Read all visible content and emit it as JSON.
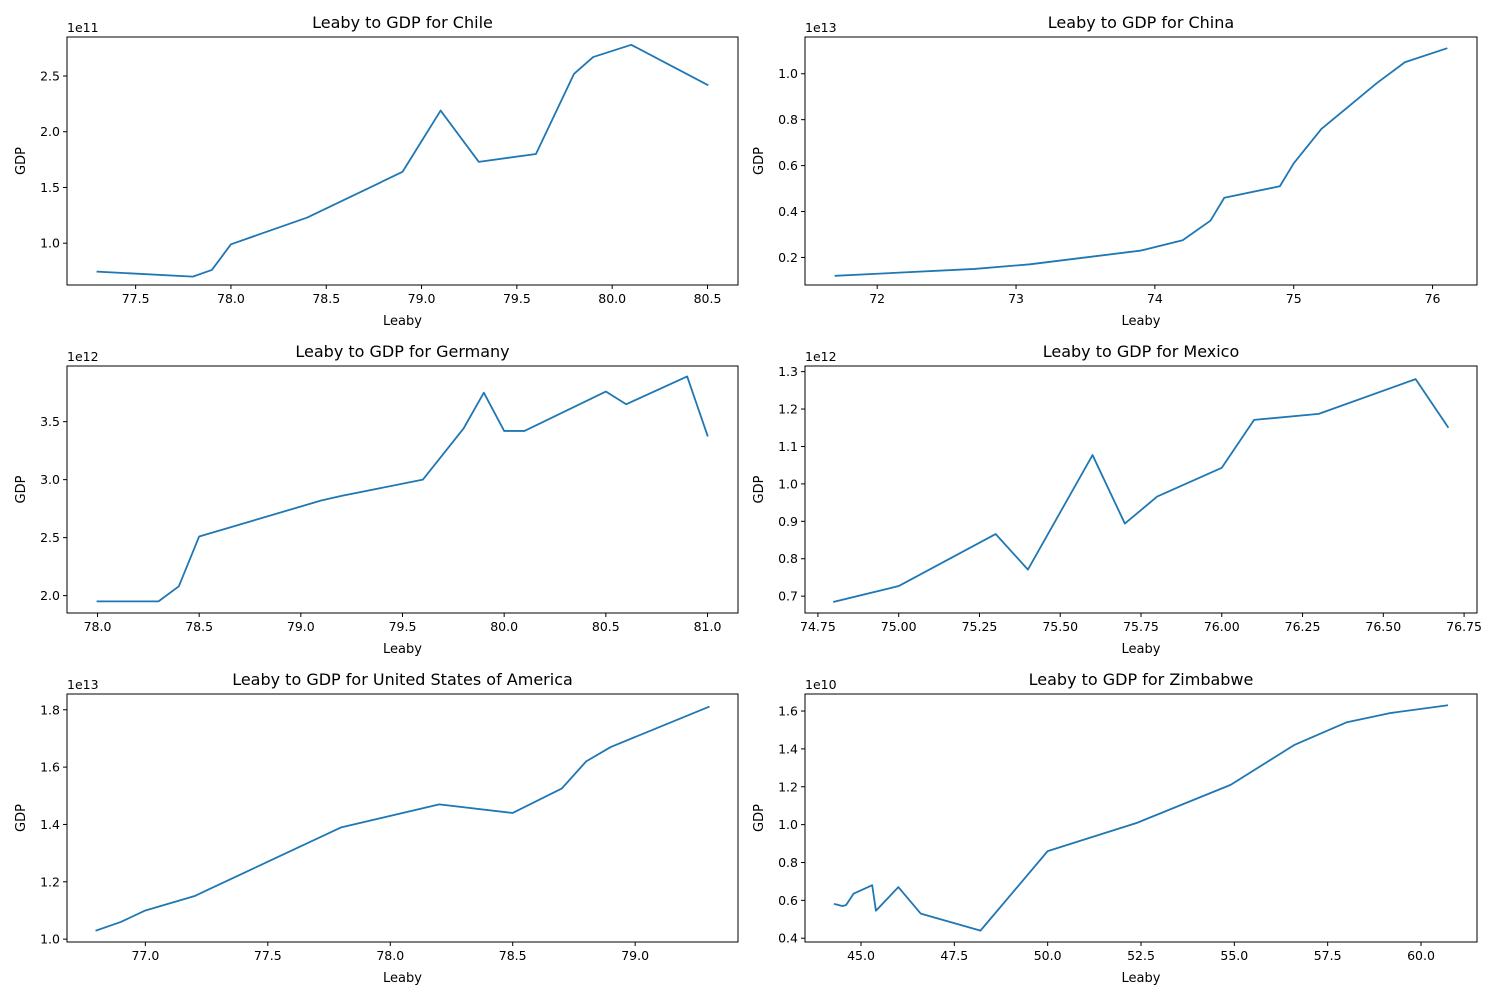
{
  "figure": {
    "line_color": "#1f77b4"
  },
  "chart_data": [
    {
      "type": "line",
      "title": "Leaby to GDP for Chile",
      "xlabel": "Leaby",
      "ylabel": "GDP",
      "exponent_label": "1e11",
      "xlim": [
        77.14,
        80.66
      ],
      "ylim": [
        0.625,
        2.85
      ],
      "xticks": [
        77.5,
        78.0,
        78.5,
        79.0,
        79.5,
        80.0,
        80.5
      ],
      "xtick_labels": [
        "77.5",
        "78.0",
        "78.5",
        "79.0",
        "79.5",
        "80.0",
        "80.5"
      ],
      "yticks": [
        1.0,
        1.5,
        2.0,
        2.5
      ],
      "ytick_labels": [
        "1.0",
        "1.5",
        "2.0",
        "2.5"
      ],
      "x": [
        77.3,
        77.8,
        77.9,
        78.0,
        78.4,
        78.9,
        79.1,
        79.3,
        79.6,
        79.8,
        79.9,
        80.1,
        80.5
      ],
      "y": [
        0.745,
        0.7,
        0.76,
        0.99,
        1.23,
        1.64,
        2.19,
        1.73,
        1.8,
        2.52,
        2.67,
        2.78,
        2.42
      ]
    },
    {
      "type": "line",
      "title": "Leaby to GDP for China",
      "xlabel": "Leaby",
      "ylabel": "GDP",
      "exponent_label": "1e13",
      "xlim": [
        71.48,
        76.32
      ],
      "ylim": [
        0.08,
        1.16
      ],
      "xticks": [
        72,
        73,
        74,
        75,
        76
      ],
      "xtick_labels": [
        "72",
        "73",
        "74",
        "75",
        "76"
      ],
      "yticks": [
        0.2,
        0.4,
        0.6,
        0.8,
        1.0
      ],
      "ytick_labels": [
        "0.2",
        "0.4",
        "0.6",
        "0.8",
        "1.0"
      ],
      "x": [
        71.7,
        72.7,
        73.1,
        73.5,
        73.9,
        74.2,
        74.4,
        74.5,
        74.9,
        75.0,
        75.2,
        75.4,
        75.6,
        75.8,
        76.1
      ],
      "y": [
        0.12,
        0.15,
        0.17,
        0.2,
        0.23,
        0.275,
        0.36,
        0.46,
        0.51,
        0.61,
        0.76,
        0.86,
        0.96,
        1.05,
        1.11
      ]
    },
    {
      "type": "line",
      "title": "Leaby to GDP for Germany",
      "xlabel": "Leaby",
      "ylabel": "GDP",
      "exponent_label": "1e12",
      "xlim": [
        77.85,
        81.15
      ],
      "ylim": [
        1.85,
        3.98
      ],
      "xticks": [
        78.0,
        78.5,
        79.0,
        79.5,
        80.0,
        80.5,
        81.0
      ],
      "xtick_labels": [
        "78.0",
        "78.5",
        "79.0",
        "79.5",
        "80.0",
        "80.5",
        "81.0"
      ],
      "yticks": [
        2.0,
        2.5,
        3.0,
        3.5
      ],
      "ytick_labels": [
        "2.0",
        "2.5",
        "3.0",
        "3.5"
      ],
      "x": [
        78.0,
        78.3,
        78.4,
        78.5,
        79.1,
        79.2,
        79.6,
        79.8,
        79.9,
        80.0,
        80.1,
        80.5,
        80.6,
        80.9,
        81.0
      ],
      "y": [
        1.95,
        1.95,
        2.08,
        2.51,
        2.82,
        2.86,
        3.0,
        3.44,
        3.75,
        3.42,
        3.42,
        3.76,
        3.65,
        3.89,
        3.38
      ]
    },
    {
      "type": "line",
      "title": "Leaby to GDP for Mexico",
      "xlabel": "Leaby",
      "ylabel": "GDP",
      "exponent_label": "1e12",
      "xlim": [
        74.71,
        76.79
      ],
      "ylim": [
        0.655,
        1.315
      ],
      "xticks": [
        74.75,
        75.0,
        75.25,
        75.5,
        75.75,
        76.0,
        76.25,
        76.5,
        76.75
      ],
      "xtick_labels": [
        "74.75",
        "75.00",
        "75.25",
        "75.50",
        "75.75",
        "76.00",
        "76.25",
        "76.50",
        "76.75"
      ],
      "yticks": [
        0.7,
        0.8,
        0.9,
        1.0,
        1.1,
        1.2,
        1.3
      ],
      "ytick_labels": [
        "0.7",
        "0.8",
        "0.9",
        "1.0",
        "1.1",
        "1.2",
        "1.3"
      ],
      "x": [
        74.8,
        75.0,
        75.3,
        75.4,
        75.6,
        75.7,
        75.8,
        76.0,
        76.1,
        76.3,
        76.6,
        76.7
      ],
      "y": [
        0.685,
        0.727,
        0.866,
        0.771,
        1.077,
        0.894,
        0.966,
        1.043,
        1.171,
        1.187,
        1.28,
        1.152
      ]
    },
    {
      "type": "line",
      "title": "Leaby to GDP for United States of America",
      "xlabel": "Leaby",
      "ylabel": "GDP",
      "exponent_label": "1e13",
      "xlim": [
        76.68,
        79.42
      ],
      "ylim": [
        0.99,
        1.855
      ],
      "xticks": [
        77.0,
        77.5,
        78.0,
        78.5,
        79.0
      ],
      "xtick_labels": [
        "77.0",
        "77.5",
        "78.0",
        "78.5",
        "79.0"
      ],
      "yticks": [
        1.0,
        1.2,
        1.4,
        1.6,
        1.8
      ],
      "ytick_labels": [
        "1.0",
        "1.2",
        "1.4",
        "1.6",
        "1.8"
      ],
      "x": [
        76.8,
        76.9,
        77.0,
        77.2,
        77.5,
        77.8,
        78.2,
        78.5,
        78.7,
        78.8,
        78.9,
        79.3
      ],
      "y": [
        1.03,
        1.06,
        1.1,
        1.15,
        1.27,
        1.39,
        1.47,
        1.44,
        1.525,
        1.62,
        1.67,
        1.81
      ]
    },
    {
      "type": "line",
      "title": "Leaby to GDP for Zimbabwe",
      "xlabel": "Leaby",
      "ylabel": "GDP",
      "exponent_label": "1e10",
      "xlim": [
        43.5,
        61.5
      ],
      "ylim": [
        0.38,
        1.69
      ],
      "xticks": [
        45.0,
        47.5,
        50.0,
        52.5,
        55.0,
        57.5,
        60.0
      ],
      "xtick_labels": [
        "45.0",
        "47.5",
        "50.0",
        "52.5",
        "55.0",
        "57.5",
        "60.0"
      ],
      "yticks": [
        0.4,
        0.6,
        0.8,
        1.0,
        1.2,
        1.4,
        1.6
      ],
      "ytick_labels": [
        "0.4",
        "0.6",
        "0.8",
        "1.0",
        "1.2",
        "1.4",
        "1.6"
      ],
      "x": [
        44.3,
        44.5,
        44.6,
        44.8,
        45.3,
        45.4,
        46.0,
        46.6,
        48.2,
        50.0,
        52.4,
        54.9,
        56.6,
        58.0,
        59.2,
        60.7
      ],
      "y": [
        0.58,
        0.57,
        0.575,
        0.635,
        0.68,
        0.545,
        0.67,
        0.53,
        0.44,
        0.86,
        1.01,
        1.21,
        1.42,
        1.54,
        1.59,
        1.63
      ]
    }
  ]
}
